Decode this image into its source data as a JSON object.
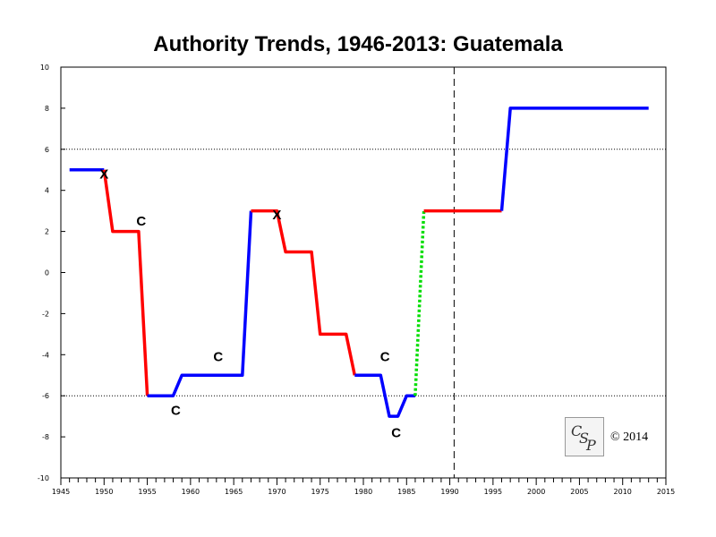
{
  "chart_data": {
    "type": "line",
    "title": "Authority Trends, 1946-2013: Guatemala",
    "xlim": [
      1945,
      2015
    ],
    "ylim": [
      -10,
      10
    ],
    "x_major_ticks": [
      1945,
      1950,
      1955,
      1960,
      1965,
      1970,
      1975,
      1980,
      1985,
      1990,
      1995,
      2000,
      2005,
      2010,
      2015
    ],
    "y_ticks": [
      -10,
      -8,
      -6,
      -4,
      -2,
      0,
      2,
      4,
      6,
      8,
      10
    ],
    "reference_lines_y": [
      6,
      -6
    ],
    "reference_line_x": 1990.5,
    "segments": [
      {
        "color": "#0000ff",
        "style": "solid",
        "points": [
          [
            1946,
            5
          ],
          [
            1950,
            5
          ]
        ]
      },
      {
        "color": "#ff0000",
        "style": "solid",
        "points": [
          [
            1950,
            5
          ],
          [
            1951,
            2
          ],
          [
            1954,
            2
          ],
          [
            1955,
            -6
          ]
        ]
      },
      {
        "color": "#0000ff",
        "style": "solid",
        "points": [
          [
            1955,
            -6
          ],
          [
            1958,
            -6
          ],
          [
            1959,
            -5
          ],
          [
            1966,
            -5
          ],
          [
            1967,
            3
          ]
        ]
      },
      {
        "color": "#ff0000",
        "style": "solid",
        "points": [
          [
            1967,
            3
          ],
          [
            1970,
            3
          ],
          [
            1971,
            1
          ],
          [
            1974,
            1
          ],
          [
            1975,
            -3
          ],
          [
            1978,
            -3
          ],
          [
            1979,
            -5
          ]
        ]
      },
      {
        "color": "#0000ff",
        "style": "solid",
        "points": [
          [
            1979,
            -5
          ],
          [
            1982,
            -5
          ],
          [
            1983,
            -7
          ],
          [
            1984,
            -7
          ],
          [
            1985,
            -6
          ],
          [
            1986,
            -6
          ]
        ]
      },
      {
        "color": "#00dd00",
        "style": "dotted",
        "points": [
          [
            1986,
            -6
          ],
          [
            1987,
            3
          ]
        ]
      },
      {
        "color": "#ff0000",
        "style": "solid",
        "points": [
          [
            1987,
            3
          ],
          [
            1996,
            3
          ]
        ]
      },
      {
        "color": "#0000ff",
        "style": "solid",
        "points": [
          [
            1996,
            3
          ],
          [
            1997,
            8
          ],
          [
            2013,
            8
          ]
        ]
      }
    ],
    "annotations": [
      {
        "text": "X",
        "x": 1950,
        "y": 4.8
      },
      {
        "text": "C",
        "x": 1954.3,
        "y": 2.5
      },
      {
        "text": "C",
        "x": 1958.3,
        "y": -6.7
      },
      {
        "text": "C",
        "x": 1963.2,
        "y": -4.1
      },
      {
        "text": "X",
        "x": 1970,
        "y": 2.8
      },
      {
        "text": "C",
        "x": 1982.5,
        "y": -4.1
      },
      {
        "text": "C",
        "x": 1983.8,
        "y": -7.8
      }
    ]
  },
  "logo_text": "CSP",
  "copyright": "© 2014"
}
